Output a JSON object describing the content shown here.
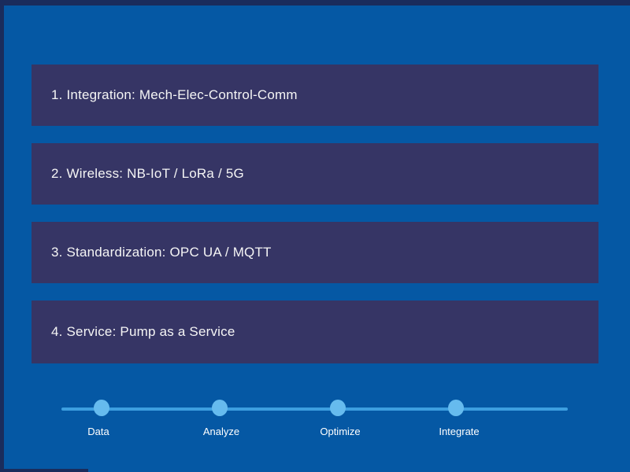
{
  "slide": {
    "feature_bars": [
      {
        "label": "1. Integration: Mech-Elec-Control-Comm"
      },
      {
        "label": "2. Wireless: NB-IoT / LoRa / 5G"
      },
      {
        "label": "3. Standardization: OPC UA / MQTT"
      },
      {
        "label": "4. Service: Pump as a Service"
      }
    ],
    "timeline": {
      "steps": [
        {
          "label": "Data"
        },
        {
          "label": "Analyze"
        },
        {
          "label": "Optimize"
        },
        {
          "label": "Integrate"
        }
      ]
    },
    "colors": {
      "slide_background": "#0558a4",
      "frame_edge": "#1a2c5c",
      "bar_fill": "#363565",
      "bar_text": "#f5f5f5",
      "timeline_line": "#3d9fe0",
      "timeline_dot": "#66bbee",
      "timeline_label_text": "#ffffff"
    }
  }
}
